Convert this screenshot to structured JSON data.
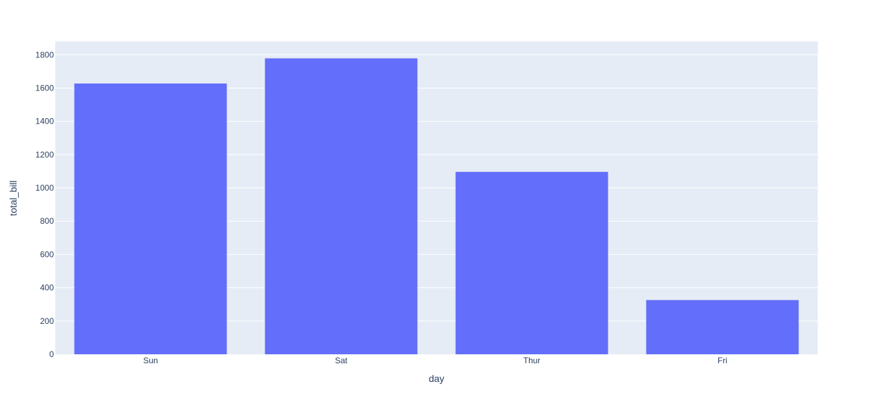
{
  "chart_data": {
    "type": "bar",
    "categories": [
      "Sun",
      "Sat",
      "Thur",
      "Fri"
    ],
    "values": [
      1627.16,
      1778.4,
      1096.33,
      325.88
    ],
    "xlabel": "day",
    "ylabel": "total_bill",
    "ylim": [
      0,
      1880
    ],
    "yticks": [
      0,
      200,
      400,
      600,
      800,
      1000,
      1200,
      1400,
      1600,
      1800
    ],
    "grid": true,
    "colors": {
      "bar": "#636efa",
      "plot_background": "#e5ecf6",
      "gridline": "#ffffff",
      "text": "#2a3f5f"
    }
  }
}
